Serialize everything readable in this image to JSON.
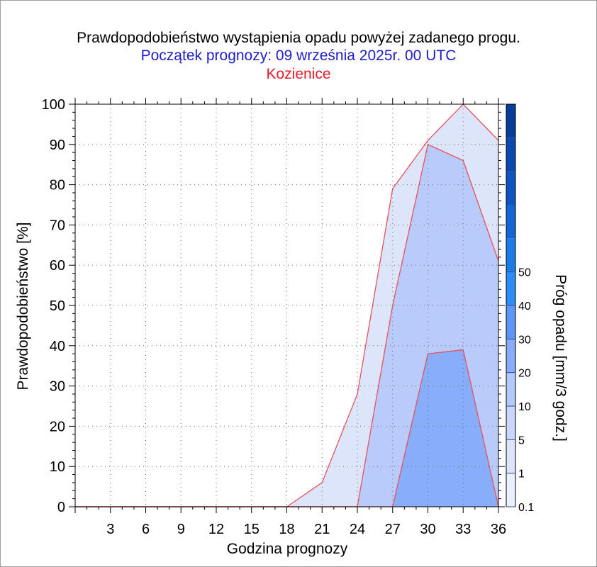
{
  "titles": {
    "line1": "Prawdopodobieństwo wystąpienia opadu powyżej zadanego progu.",
    "line2": "Początek prognozy: 09 września 2025r. 00 UTC",
    "line3": "Kozienice"
  },
  "chart_data": {
    "type": "area",
    "xlabel": "Godzina prognozy",
    "ylabel": "Prawdopodobieństwo [%]",
    "x": [
      0,
      3,
      6,
      9,
      12,
      15,
      18,
      21,
      24,
      27,
      30,
      33,
      36
    ],
    "x_ticks": [
      3,
      6,
      9,
      12,
      15,
      18,
      21,
      24,
      27,
      30,
      33,
      36
    ],
    "xlim": [
      0,
      36
    ],
    "ylim": [
      0,
      100
    ],
    "y_ticks": [
      0,
      10,
      20,
      30,
      40,
      50,
      60,
      70,
      80,
      90,
      100
    ],
    "grid": true,
    "series": [
      {
        "threshold": 0.1,
        "color": "#dde5fb",
        "values": [
          0,
          0,
          0,
          0,
          0,
          0,
          0,
          6,
          28,
          79,
          91,
          100,
          91
        ]
      },
      {
        "threshold": 1,
        "color": "#b8cbfa",
        "values": [
          0,
          0,
          0,
          0,
          0,
          0,
          0,
          0,
          0,
          50,
          90,
          86,
          61
        ]
      },
      {
        "threshold": 5,
        "color": "#88adfb",
        "values": [
          0,
          0,
          0,
          0,
          0,
          0,
          0,
          0,
          0,
          0,
          38,
          39,
          0
        ]
      }
    ],
    "colorbar": {
      "label": "Próg opadu [mm/3 godz.]",
      "tick_labels": [
        "0.1",
        "1",
        "5",
        "10",
        "20",
        "30",
        "40",
        "50"
      ],
      "colors": [
        "#eaf0fd",
        "#dde5fb",
        "#c8d7fb",
        "#b2c9fa",
        "#88adfb",
        "#5e95fb",
        "#2c8ef5",
        "#1a7de6",
        "#1466d4",
        "#0e55c2",
        "#0a48b0",
        "#083d9c"
      ]
    }
  }
}
